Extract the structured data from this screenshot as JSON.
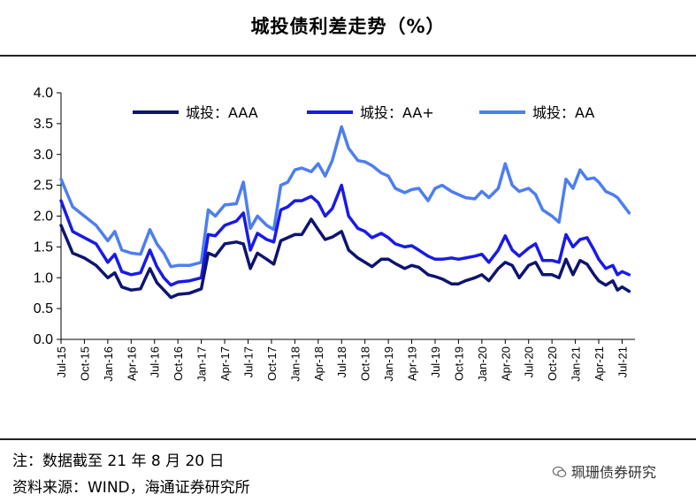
{
  "title": "城投债利差走势（%）",
  "footer": {
    "note": "注：数据截至 21 年 8 月 20 日",
    "source": "资料来源：WIND，海通证券研究所"
  },
  "watermark": {
    "text": "珮珊债券研究",
    "icon": "wechat-icon"
  },
  "chart_data": {
    "type": "line",
    "ylim": [
      0.0,
      4.0
    ],
    "yticks": [
      "0.0",
      "0.5",
      "1.0",
      "1.5",
      "2.0",
      "2.5",
      "3.0",
      "3.5",
      "4.0"
    ],
    "xlabels": [
      "Jul-15",
      "Oct-15",
      "Jan-16",
      "Apr-16",
      "Jul-16",
      "Oct-16",
      "Jan-17",
      "Apr-17",
      "Jul-17",
      "Oct-17",
      "Jan-18",
      "Apr-18",
      "Jul-18",
      "Oct-18",
      "Jan-19",
      "Apr-19",
      "Jul-19",
      "Oct-19",
      "Jan-20",
      "Apr-20",
      "Jul-20",
      "Oct-20",
      "Jan-21",
      "Apr-21",
      "Jul-21"
    ],
    "legend_position": "top",
    "grid": false,
    "series": [
      {
        "name": "城投：AAA",
        "color": "#0d1470",
        "points": [
          [
            0,
            1.85
          ],
          [
            0.5,
            1.4
          ],
          [
            1,
            1.32
          ],
          [
            1.5,
            1.2
          ],
          [
            2,
            1.0
          ],
          [
            2.3,
            1.08
          ],
          [
            2.6,
            0.85
          ],
          [
            3,
            0.8
          ],
          [
            3.4,
            0.82
          ],
          [
            3.8,
            1.15
          ],
          [
            4.1,
            0.92
          ],
          [
            4.4,
            0.8
          ],
          [
            4.7,
            0.68
          ],
          [
            5,
            0.73
          ],
          [
            5.5,
            0.75
          ],
          [
            6,
            0.82
          ],
          [
            6.3,
            1.4
          ],
          [
            6.6,
            1.35
          ],
          [
            7,
            1.55
          ],
          [
            7.5,
            1.58
          ],
          [
            7.8,
            1.55
          ],
          [
            8.1,
            1.15
          ],
          [
            8.4,
            1.4
          ],
          [
            8.8,
            1.3
          ],
          [
            9.1,
            1.22
          ],
          [
            9.4,
            1.6
          ],
          [
            9.7,
            1.65
          ],
          [
            10,
            1.7
          ],
          [
            10.3,
            1.7
          ],
          [
            10.7,
            1.95
          ],
          [
            11,
            1.78
          ],
          [
            11.3,
            1.62
          ],
          [
            11.6,
            1.66
          ],
          [
            12,
            1.75
          ],
          [
            12.3,
            1.45
          ],
          [
            12.7,
            1.32
          ],
          [
            13,
            1.25
          ],
          [
            13.3,
            1.18
          ],
          [
            13.7,
            1.3
          ],
          [
            14,
            1.3
          ],
          [
            14.3,
            1.23
          ],
          [
            14.7,
            1.15
          ],
          [
            15,
            1.2
          ],
          [
            15.3,
            1.17
          ],
          [
            15.7,
            1.05
          ],
          [
            16,
            1.02
          ],
          [
            16.3,
            0.98
          ],
          [
            16.7,
            0.9
          ],
          [
            17,
            0.9
          ],
          [
            17.3,
            0.95
          ],
          [
            17.7,
            1.0
          ],
          [
            18,
            1.05
          ],
          [
            18.3,
            0.95
          ],
          [
            18.7,
            1.15
          ],
          [
            19,
            1.25
          ],
          [
            19.3,
            1.2
          ],
          [
            19.6,
            1.0
          ],
          [
            20,
            1.2
          ],
          [
            20.3,
            1.25
          ],
          [
            20.6,
            1.05
          ],
          [
            21,
            1.05
          ],
          [
            21.3,
            1.0
          ],
          [
            21.6,
            1.3
          ],
          [
            21.9,
            1.05
          ],
          [
            22.2,
            1.28
          ],
          [
            22.5,
            1.22
          ],
          [
            22.8,
            1.05
          ],
          [
            23,
            0.95
          ],
          [
            23.3,
            0.88
          ],
          [
            23.6,
            0.95
          ],
          [
            23.8,
            0.8
          ],
          [
            24,
            0.85
          ],
          [
            24.3,
            0.78
          ]
        ]
      },
      {
        "name": "城投：AA+",
        "color": "#1a1ae6",
        "points": [
          [
            0,
            2.25
          ],
          [
            0.5,
            1.75
          ],
          [
            1,
            1.65
          ],
          [
            1.5,
            1.55
          ],
          [
            2,
            1.25
          ],
          [
            2.3,
            1.38
          ],
          [
            2.6,
            1.1
          ],
          [
            3,
            1.05
          ],
          [
            3.4,
            1.08
          ],
          [
            3.8,
            1.45
          ],
          [
            4.1,
            1.18
          ],
          [
            4.4,
            1.0
          ],
          [
            4.7,
            0.88
          ],
          [
            5,
            0.93
          ],
          [
            5.5,
            0.95
          ],
          [
            6,
            1.0
          ],
          [
            6.3,
            1.7
          ],
          [
            6.6,
            1.68
          ],
          [
            7,
            1.85
          ],
          [
            7.5,
            1.92
          ],
          [
            7.8,
            2.05
          ],
          [
            8.1,
            1.45
          ],
          [
            8.4,
            1.72
          ],
          [
            8.8,
            1.62
          ],
          [
            9.1,
            1.58
          ],
          [
            9.4,
            2.1
          ],
          [
            9.7,
            2.15
          ],
          [
            10,
            2.25
          ],
          [
            10.3,
            2.25
          ],
          [
            10.7,
            2.32
          ],
          [
            11,
            2.22
          ],
          [
            11.3,
            2.0
          ],
          [
            11.6,
            2.12
          ],
          [
            12,
            2.5
          ],
          [
            12.3,
            2.0
          ],
          [
            12.7,
            1.8
          ],
          [
            13,
            1.75
          ],
          [
            13.3,
            1.65
          ],
          [
            13.7,
            1.72
          ],
          [
            14,
            1.65
          ],
          [
            14.3,
            1.55
          ],
          [
            14.7,
            1.5
          ],
          [
            15,
            1.52
          ],
          [
            15.3,
            1.45
          ],
          [
            15.7,
            1.35
          ],
          [
            16,
            1.3
          ],
          [
            16.3,
            1.3
          ],
          [
            16.7,
            1.32
          ],
          [
            17,
            1.3
          ],
          [
            17.3,
            1.32
          ],
          [
            17.7,
            1.35
          ],
          [
            18,
            1.38
          ],
          [
            18.3,
            1.25
          ],
          [
            18.7,
            1.45
          ],
          [
            19,
            1.68
          ],
          [
            19.3,
            1.45
          ],
          [
            19.6,
            1.35
          ],
          [
            20,
            1.48
          ],
          [
            20.3,
            1.55
          ],
          [
            20.6,
            1.28
          ],
          [
            21,
            1.28
          ],
          [
            21.3,
            1.25
          ],
          [
            21.6,
            1.7
          ],
          [
            21.9,
            1.5
          ],
          [
            22.2,
            1.62
          ],
          [
            22.5,
            1.65
          ],
          [
            22.8,
            1.45
          ],
          [
            23,
            1.3
          ],
          [
            23.3,
            1.15
          ],
          [
            23.6,
            1.2
          ],
          [
            23.8,
            1.05
          ],
          [
            24,
            1.1
          ],
          [
            24.3,
            1.05
          ]
        ]
      },
      {
        "name": "城投：AA",
        "color": "#4d7ef0",
        "points": [
          [
            0,
            2.6
          ],
          [
            0.5,
            2.15
          ],
          [
            1,
            2.0
          ],
          [
            1.5,
            1.85
          ],
          [
            2,
            1.6
          ],
          [
            2.3,
            1.75
          ],
          [
            2.6,
            1.45
          ],
          [
            3,
            1.4
          ],
          [
            3.4,
            1.38
          ],
          [
            3.8,
            1.78
          ],
          [
            4.1,
            1.55
          ],
          [
            4.4,
            1.4
          ],
          [
            4.7,
            1.18
          ],
          [
            5,
            1.2
          ],
          [
            5.5,
            1.2
          ],
          [
            6,
            1.25
          ],
          [
            6.3,
            2.1
          ],
          [
            6.6,
            2.0
          ],
          [
            7,
            2.18
          ],
          [
            7.5,
            2.2
          ],
          [
            7.8,
            2.55
          ],
          [
            8.1,
            1.8
          ],
          [
            8.4,
            2.0
          ],
          [
            8.8,
            1.85
          ],
          [
            9.1,
            1.78
          ],
          [
            9.4,
            2.5
          ],
          [
            9.7,
            2.55
          ],
          [
            10,
            2.75
          ],
          [
            10.3,
            2.78
          ],
          [
            10.7,
            2.72
          ],
          [
            11,
            2.85
          ],
          [
            11.3,
            2.65
          ],
          [
            11.6,
            2.9
          ],
          [
            12,
            3.45
          ],
          [
            12.3,
            3.1
          ],
          [
            12.7,
            2.9
          ],
          [
            13,
            2.88
          ],
          [
            13.3,
            2.82
          ],
          [
            13.7,
            2.7
          ],
          [
            14,
            2.65
          ],
          [
            14.3,
            2.45
          ],
          [
            14.7,
            2.38
          ],
          [
            15,
            2.43
          ],
          [
            15.3,
            2.45
          ],
          [
            15.7,
            2.25
          ],
          [
            16,
            2.45
          ],
          [
            16.3,
            2.5
          ],
          [
            16.7,
            2.4
          ],
          [
            17,
            2.35
          ],
          [
            17.3,
            2.3
          ],
          [
            17.7,
            2.28
          ],
          [
            18,
            2.4
          ],
          [
            18.3,
            2.3
          ],
          [
            18.7,
            2.45
          ],
          [
            19,
            2.85
          ],
          [
            19.3,
            2.5
          ],
          [
            19.6,
            2.4
          ],
          [
            20,
            2.45
          ],
          [
            20.3,
            2.35
          ],
          [
            20.6,
            2.1
          ],
          [
            21,
            2.0
          ],
          [
            21.3,
            1.9
          ],
          [
            21.6,
            2.6
          ],
          [
            21.9,
            2.45
          ],
          [
            22.2,
            2.75
          ],
          [
            22.5,
            2.6
          ],
          [
            22.8,
            2.62
          ],
          [
            23,
            2.55
          ],
          [
            23.3,
            2.4
          ],
          [
            23.6,
            2.35
          ],
          [
            23.8,
            2.3
          ],
          [
            24,
            2.2
          ],
          [
            24.3,
            2.05
          ]
        ]
      }
    ]
  }
}
